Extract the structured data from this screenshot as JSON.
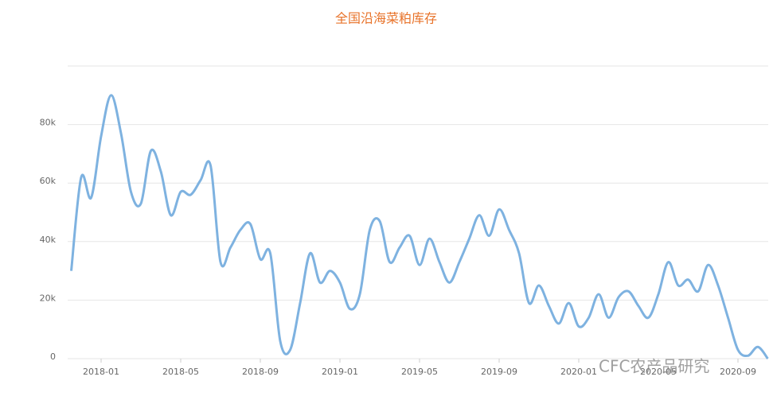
{
  "chart_data": {
    "type": "line",
    "title": "全国沿海菜粕库存",
    "categories": [
      null,
      null,
      null,
      "2018-01",
      null,
      null,
      null,
      null,
      null,
      null,
      null,
      "2018-05",
      null,
      null,
      null,
      null,
      null,
      null,
      null,
      "2018-09",
      null,
      null,
      null,
      null,
      null,
      null,
      null,
      "2019-01",
      null,
      null,
      null,
      null,
      null,
      null,
      null,
      "2019-05",
      null,
      null,
      null,
      null,
      null,
      null,
      null,
      "2019-09",
      null,
      null,
      null,
      null,
      null,
      null,
      null,
      "2020-01",
      null,
      null,
      null,
      null,
      null,
      null,
      null,
      "2020-05",
      null,
      null,
      null,
      null,
      null,
      null,
      null,
      "2020-09",
      null,
      null,
      null
    ],
    "series": [
      {
        "name": "全国沿海菜粕库存",
        "color": "#7eb2e0",
        "values": [
          30000,
          62000,
          55000,
          76000,
          90000,
          77000,
          57000,
          53000,
          71000,
          64000,
          49000,
          57000,
          56000,
          61000,
          66000,
          33000,
          38000,
          44000,
          46000,
          34000,
          36000,
          6000,
          3000,
          19000,
          36000,
          26000,
          30000,
          26000,
          17000,
          22000,
          44000,
          47000,
          33000,
          38000,
          42000,
          32000,
          41000,
          33000,
          26000,
          33000,
          41000,
          49000,
          42000,
          51000,
          44000,
          36000,
          19000,
          25000,
          18000,
          12000,
          19000,
          11000,
          14000,
          22000,
          14000,
          21000,
          23000,
          18000,
          14000,
          22000,
          33000,
          25000,
          27000,
          23000,
          32000,
          25000,
          14000,
          3000,
          1000,
          4000,
          0
        ]
      }
    ],
    "ylim": [
      0,
      100000
    ],
    "yticks": [
      {
        "value": 0,
        "label": "0"
      },
      {
        "value": 20000,
        "label": "20k"
      },
      {
        "value": 40000,
        "label": "40k"
      },
      {
        "value": 60000,
        "label": "60k"
      },
      {
        "value": 80000,
        "label": "80k"
      }
    ],
    "grid": true,
    "watermark": "CFC农产品研究"
  }
}
